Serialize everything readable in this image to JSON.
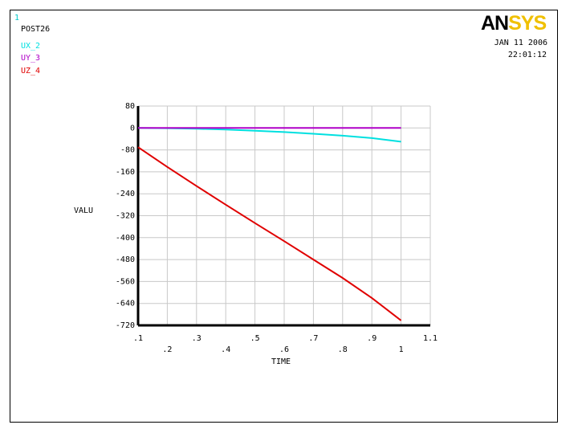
{
  "header": {
    "window_number": "1",
    "module_title": "POST26",
    "logo_an": "AN",
    "logo_sys": "SYS",
    "date": "JAN 11 2006",
    "time": "22:01:12"
  },
  "colors": {
    "ux_2": "#00e0e0",
    "uy_3": "#b000c8",
    "uz_4": "#e00000",
    "grid": "#c8c8c8",
    "logo_accent": "#f0c000"
  },
  "chart_data": {
    "type": "line",
    "xlabel": "TIME",
    "ylabel": "VALU",
    "xlim": [
      0.1,
      1.1
    ],
    "ylim": [
      -720,
      80
    ],
    "x_ticks_major": [
      ".1",
      ".3",
      ".5",
      ".7",
      ".9",
      "1.1"
    ],
    "x_ticks_minor": [
      ".2",
      ".4",
      ".6",
      ".8",
      "1"
    ],
    "y_ticks": [
      "80",
      "0",
      "-80",
      "-160",
      "-240",
      "-320",
      "-400",
      "-480",
      "-560",
      "-640",
      "-720"
    ],
    "grid": true,
    "legend_position": "top-left",
    "series": [
      {
        "name": "UX_2",
        "x": [
          0.1,
          0.2,
          0.3,
          0.4,
          0.5,
          0.6,
          0.7,
          0.8,
          0.9,
          1.0
        ],
        "values": [
          0,
          -1,
          -3,
          -6,
          -10,
          -15,
          -21,
          -28,
          -37,
          -50
        ]
      },
      {
        "name": "UY_3",
        "x": [
          0.1,
          0.2,
          0.3,
          0.4,
          0.5,
          0.6,
          0.7,
          0.8,
          0.9,
          1.0
        ],
        "values": [
          0,
          0,
          0,
          0,
          0,
          0,
          0,
          0,
          0,
          0
        ]
      },
      {
        "name": "UZ_4",
        "x": [
          0.1,
          0.2,
          0.3,
          0.4,
          0.5,
          0.6,
          0.7,
          0.8,
          0.9,
          1.0
        ],
        "values": [
          -70,
          -142,
          -212,
          -280,
          -347,
          -413,
          -480,
          -547,
          -620,
          -702
        ]
      }
    ]
  }
}
